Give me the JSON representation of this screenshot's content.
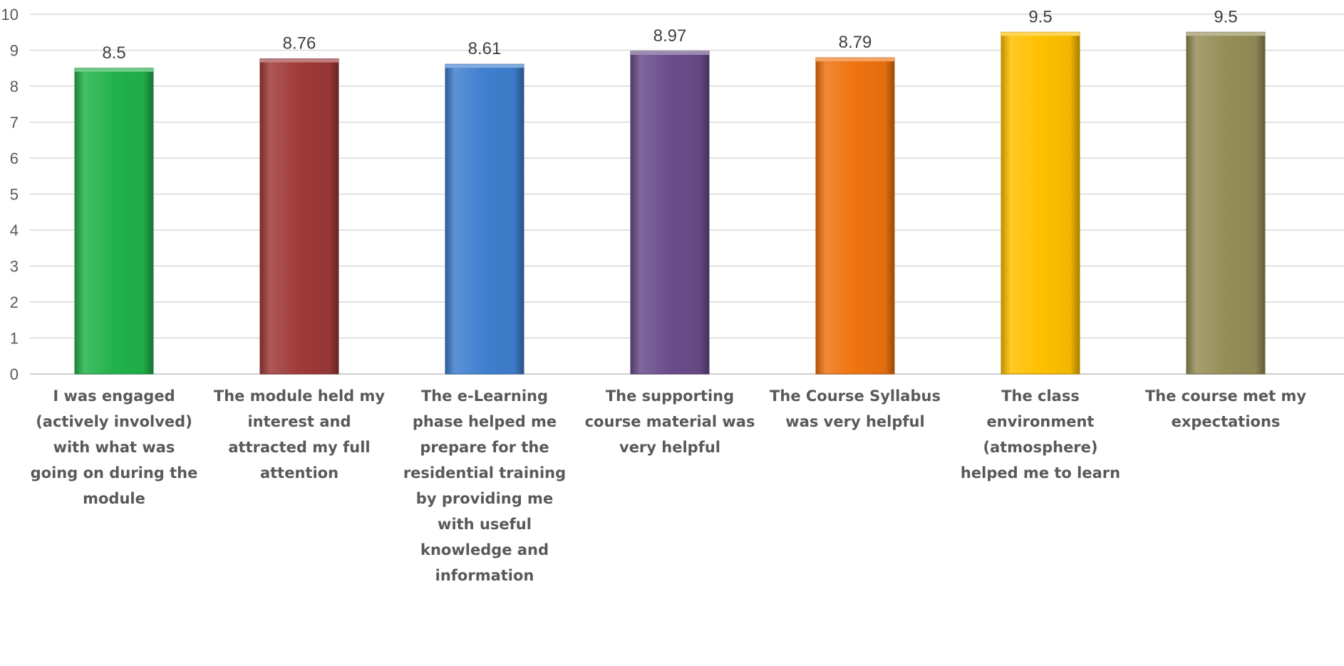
{
  "chart_data": {
    "type": "bar",
    "title": "",
    "xlabel": "",
    "ylabel": "",
    "ylim": [
      0,
      10
    ],
    "yticks": [
      0,
      1,
      2,
      3,
      4,
      5,
      6,
      7,
      8,
      9,
      10
    ],
    "grid": "horizontal",
    "legend": "none",
    "categories": [
      "I was engaged\n(actively involved)\nwith what was\ngoing on during the\nmodule",
      "The module held my\ninterest and\nattracted my full\nattention",
      "The e-Learning\nphase helped me\nprepare for the\nresidential training\nby providing me\nwith useful\nknowledge and\ninformation",
      "The supporting\ncourse material was\nvery helpful",
      "The Course Syllabus\nwas very helpful",
      "The class\nenvironment\n(atmosphere)\nhelped me to learn",
      "The course met my\nexpectations"
    ],
    "values": [
      8.5,
      8.76,
      8.61,
      8.97,
      8.79,
      9.5,
      9.5
    ],
    "value_labels": [
      "8.5",
      "8.76",
      "8.61",
      "8.97",
      "8.79",
      "9.5",
      "9.5"
    ],
    "colors": [
      "#22b24c",
      "#9e3a38",
      "#3f7fcf",
      "#6a4c8a",
      "#ef7310",
      "#ffc000",
      "#958e58"
    ]
  }
}
